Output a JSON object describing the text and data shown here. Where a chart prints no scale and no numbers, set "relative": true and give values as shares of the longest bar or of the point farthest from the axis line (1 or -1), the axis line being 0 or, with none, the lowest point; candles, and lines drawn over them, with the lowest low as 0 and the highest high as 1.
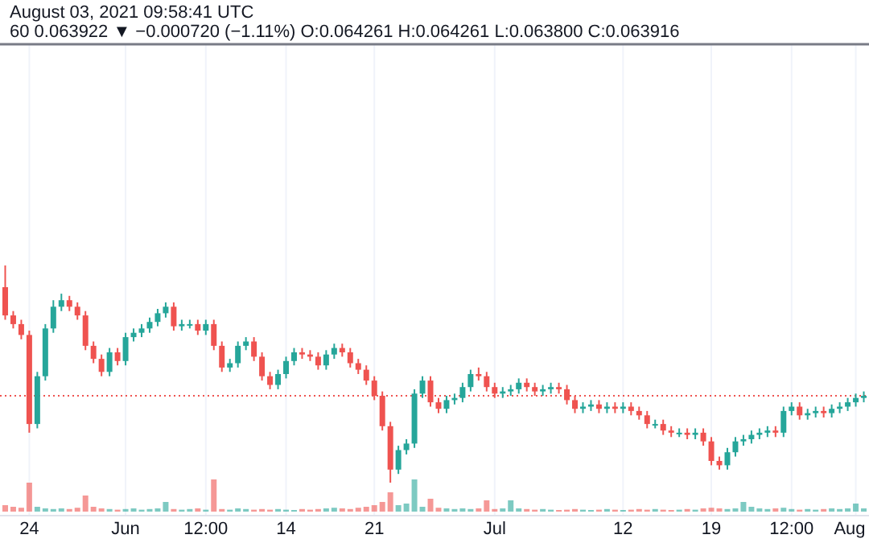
{
  "chart_data": [
    {
      "type": "candlestick",
      "title": "August 03, 2021 09:58:41 UTC",
      "subtitle": "60 0.063922 ▼ −0.000720 (−1.11%) O:0.064261 H:0.064261 L:0.063800 C:0.063916",
      "relative": true,
      "grid": "x",
      "colors": [
        "#ef5350",
        "#ef5350",
        "#ef5350",
        "#ef5350",
        "#26a69a",
        "#26a69a",
        "#26a69a",
        "#26a69a",
        "#ef5350",
        "#ef5350",
        "#ef5350",
        "#ef5350",
        "#ef5350",
        "#26a69a",
        "#ef5350",
        "#26a69a",
        "#26a69a",
        "#26a69a",
        "#26a69a",
        "#26a69a",
        "#26a69a",
        "#ef5350",
        "#26a69a",
        "#26a69a",
        "#ef5350",
        "#26a69a",
        "#ef5350",
        "#ef5350",
        "#26a69a",
        "#26a69a",
        "#26a69a",
        "#ef5350",
        "#ef5350",
        "#ef5350",
        "#26a69a",
        "#26a69a",
        "#26a69a",
        "#ef5350",
        "#ef5350",
        "#ef5350",
        "#26a69a",
        "#26a69a",
        "#ef5350",
        "#ef5350",
        "#ef5350",
        "#ef5350",
        "#ef5350",
        "#ef5350",
        "#ef5350",
        "#26a69a",
        "#26a69a",
        "#26a69a",
        "#26a69a",
        "#ef5350",
        "#ef5350",
        "#26a69a",
        "#26a69a",
        "#26a69a",
        "#26a69a",
        "#ef5350",
        "#ef5350",
        "#ef5350",
        "#26a69a",
        "#26a69a",
        "#26a69a",
        "#ef5350",
        "#ef5350",
        "#26a69a",
        "#26a69a",
        "#ef5350",
        "#ef5350",
        "#ef5350",
        "#26a69a",
        "#26a69a",
        "#ef5350",
        "#26a69a",
        "#ef5350",
        "#26a69a",
        "#ef5350",
        "#ef5350",
        "#ef5350",
        "#26a69a",
        "#ef5350",
        "#ef5350",
        "#26a69a",
        "#ef5350",
        "#26a69a",
        "#ef5350",
        "#ef5350",
        "#ef5350",
        "#26a69a",
        "#26a69a",
        "#26a69a",
        "#26a69a",
        "#26a69a",
        "#26a69a",
        "#ef5350",
        "#26a69a",
        "#26a69a",
        "#ef5350",
        "#26a69a",
        "#26a69a",
        "#ef5350",
        "#26a69a",
        "#26a69a",
        "#26a69a",
        "#26a69a",
        "#26a69a"
      ],
      "categories": [
        null,
        null,
        null,
        null,
        null,
        null,
        null,
        null,
        null,
        null,
        null,
        null,
        null,
        null,
        null,
        null,
        null,
        null,
        null,
        null,
        null,
        null,
        null,
        null,
        null,
        null,
        null,
        null,
        null,
        null,
        null,
        null,
        null,
        null,
        null,
        null,
        null,
        null,
        null,
        null,
        null,
        null,
        null,
        null,
        null,
        null,
        null,
        null,
        null,
        null,
        null,
        null,
        null,
        null,
        null,
        null,
        null,
        null,
        null,
        null,
        null,
        null,
        null,
        null,
        null,
        null,
        null,
        null,
        null,
        null,
        null,
        null,
        null,
        null,
        null,
        null,
        null,
        null,
        null,
        null,
        null,
        null,
        null,
        null,
        null,
        null,
        null,
        null,
        null,
        null,
        null,
        null,
        null,
        null,
        null,
        null,
        null,
        null,
        null,
        null,
        null,
        null,
        null,
        null,
        null,
        null,
        null,
        null
      ],
      "ohlc": [
        [
          0.9,
          1,
          0.75,
          0.77
        ],
        [
          0.77,
          0.79,
          0.71,
          0.73
        ],
        [
          0.73,
          0.75,
          0.66,
          0.68
        ],
        [
          0.68,
          0.7,
          0.23,
          0.27
        ],
        [
          0.27,
          0.51,
          0.25,
          0.49
        ],
        [
          0.49,
          0.73,
          0.47,
          0.71
        ],
        [
          0.71,
          0.84,
          0.69,
          0.81
        ],
        [
          0.81,
          0.87,
          0.79,
          0.84
        ],
        [
          0.84,
          0.86,
          0.79,
          0.81
        ],
        [
          0.81,
          0.83,
          0.75,
          0.77
        ],
        [
          0.77,
          0.79,
          0.61,
          0.63
        ],
        [
          0.63,
          0.65,
          0.55,
          0.57
        ],
        [
          0.57,
          0.59,
          0.49,
          0.51
        ],
        [
          0.51,
          0.62,
          0.49,
          0.6
        ],
        [
          0.6,
          0.62,
          0.54,
          0.56
        ],
        [
          0.56,
          0.69,
          0.54,
          0.67
        ],
        [
          0.67,
          0.71,
          0.65,
          0.69
        ],
        [
          0.69,
          0.73,
          0.67,
          0.71
        ],
        [
          0.71,
          0.76,
          0.69,
          0.74
        ],
        [
          0.74,
          0.8,
          0.72,
          0.78
        ],
        [
          0.78,
          0.83,
          0.76,
          0.81
        ],
        [
          0.81,
          0.83,
          0.7,
          0.72
        ],
        [
          0.72,
          0.75,
          0.7,
          0.73
        ],
        [
          0.73,
          0.75,
          0.71,
          0.73
        ],
        [
          0.73,
          0.75,
          0.68,
          0.7
        ],
        [
          0.7,
          0.75,
          0.68,
          0.73
        ],
        [
          0.73,
          0.75,
          0.61,
          0.63
        ],
        [
          0.63,
          0.65,
          0.51,
          0.53
        ],
        [
          0.53,
          0.57,
          0.51,
          0.55
        ],
        [
          0.55,
          0.65,
          0.53,
          0.63
        ],
        [
          0.63,
          0.67,
          0.61,
          0.65
        ],
        [
          0.65,
          0.67,
          0.56,
          0.58
        ],
        [
          0.58,
          0.6,
          0.47,
          0.49
        ],
        [
          0.49,
          0.51,
          0.43,
          0.45
        ],
        [
          0.45,
          0.52,
          0.43,
          0.5
        ],
        [
          0.5,
          0.58,
          0.48,
          0.56
        ],
        [
          0.56,
          0.62,
          0.54,
          0.6
        ],
        [
          0.6,
          0.62,
          0.57,
          0.59
        ],
        [
          0.59,
          0.61,
          0.56,
          0.58
        ],
        [
          0.58,
          0.6,
          0.52,
          0.54
        ],
        [
          0.54,
          0.61,
          0.52,
          0.59
        ],
        [
          0.59,
          0.64,
          0.57,
          0.62
        ],
        [
          0.62,
          0.64,
          0.58,
          0.6
        ],
        [
          0.6,
          0.62,
          0.53,
          0.55
        ],
        [
          0.55,
          0.57,
          0.5,
          0.52
        ],
        [
          0.52,
          0.54,
          0.45,
          0.47
        ],
        [
          0.47,
          0.49,
          0.38,
          0.4
        ],
        [
          0.4,
          0.42,
          0.24,
          0.26
        ],
        [
          0.26,
          0.28,
          0,
          0.06
        ],
        [
          0.06,
          0.17,
          0.04,
          0.15
        ],
        [
          0.15,
          0.2,
          0.13,
          0.18
        ],
        [
          0.18,
          0.43,
          0.16,
          0.41
        ],
        [
          0.41,
          0.49,
          0.39,
          0.47
        ],
        [
          0.47,
          0.49,
          0.35,
          0.37
        ],
        [
          0.37,
          0.39,
          0.32,
          0.34
        ],
        [
          0.34,
          0.4,
          0.32,
          0.38
        ],
        [
          0.38,
          0.41,
          0.36,
          0.39
        ],
        [
          0.39,
          0.46,
          0.37,
          0.44
        ],
        [
          0.44,
          0.52,
          0.42,
          0.5
        ],
        [
          0.5,
          0.53,
          0.47,
          0.49
        ],
        [
          0.49,
          0.51,
          0.42,
          0.44
        ],
        [
          0.44,
          0.46,
          0.39,
          0.41
        ],
        [
          0.41,
          0.44,
          0.39,
          0.42
        ],
        [
          0.42,
          0.45,
          0.4,
          0.43
        ],
        [
          0.43,
          0.48,
          0.41,
          0.46
        ],
        [
          0.46,
          0.48,
          0.42,
          0.44
        ],
        [
          0.44,
          0.46,
          0.4,
          0.42
        ],
        [
          0.42,
          0.45,
          0.4,
          0.43
        ],
        [
          0.43,
          0.46,
          0.41,
          0.44
        ],
        [
          0.44,
          0.46,
          0.41,
          0.43
        ],
        [
          0.43,
          0.45,
          0.36,
          0.38
        ],
        [
          0.38,
          0.4,
          0.32,
          0.34
        ],
        [
          0.34,
          0.37,
          0.32,
          0.35
        ],
        [
          0.35,
          0.38,
          0.33,
          0.36
        ],
        [
          0.36,
          0.38,
          0.32,
          0.34
        ],
        [
          0.34,
          0.37,
          0.32,
          0.35
        ],
        [
          0.35,
          0.37,
          0.32,
          0.34
        ],
        [
          0.34,
          0.37,
          0.32,
          0.35
        ],
        [
          0.35,
          0.37,
          0.31,
          0.33
        ],
        [
          0.33,
          0.35,
          0.29,
          0.31
        ],
        [
          0.31,
          0.33,
          0.25,
          0.27
        ],
        [
          0.27,
          0.29,
          0.25,
          0.27
        ],
        [
          0.27,
          0.29,
          0.22,
          0.24
        ],
        [
          0.24,
          0.26,
          0.21,
          0.23
        ],
        [
          0.23,
          0.25,
          0.21,
          0.23
        ],
        [
          0.23,
          0.25,
          0.2,
          0.22
        ],
        [
          0.22,
          0.25,
          0.2,
          0.23
        ],
        [
          0.23,
          0.25,
          0.17,
          0.19
        ],
        [
          0.19,
          0.21,
          0.08,
          0.1
        ],
        [
          0.1,
          0.12,
          0.06,
          0.08
        ],
        [
          0.08,
          0.16,
          0.06,
          0.14
        ],
        [
          0.14,
          0.21,
          0.12,
          0.19
        ],
        [
          0.19,
          0.22,
          0.17,
          0.2
        ],
        [
          0.2,
          0.24,
          0.18,
          0.22
        ],
        [
          0.22,
          0.25,
          0.2,
          0.23
        ],
        [
          0.23,
          0.26,
          0.21,
          0.24
        ],
        [
          0.24,
          0.26,
          0.21,
          0.23
        ],
        [
          0.23,
          0.35,
          0.21,
          0.33
        ],
        [
          0.33,
          0.37,
          0.31,
          0.35
        ],
        [
          0.35,
          0.37,
          0.29,
          0.31
        ],
        [
          0.31,
          0.34,
          0.29,
          0.32
        ],
        [
          0.32,
          0.35,
          0.3,
          0.33
        ],
        [
          0.33,
          0.35,
          0.3,
          0.32
        ],
        [
          0.32,
          0.36,
          0.3,
          0.34
        ],
        [
          0.34,
          0.37,
          0.32,
          0.35
        ],
        [
          0.35,
          0.39,
          0.33,
          0.37
        ],
        [
          0.37,
          0.41,
          0.35,
          0.39
        ],
        [
          0.39,
          0.42,
          0.37,
          0.4
        ]
      ],
      "ref_lines": [
        {
          "axis": "y",
          "value": 0.4,
          "color": "#ef5350",
          "line_style": "dotted"
        }
      ]
    },
    {
      "type": "bar",
      "relative": true,
      "grid": "x",
      "colors": [
        "#ef5350",
        "#ef5350",
        "#ef5350",
        "#ef5350",
        "#26a69a",
        "#26a69a",
        "#26a69a",
        "#26a69a",
        "#ef5350",
        "#ef5350",
        "#ef5350",
        "#ef5350",
        "#ef5350",
        "#26a69a",
        "#ef5350",
        "#26a69a",
        "#26a69a",
        "#26a69a",
        "#26a69a",
        "#26a69a",
        "#26a69a",
        "#ef5350",
        "#26a69a",
        "#26a69a",
        "#ef5350",
        "#26a69a",
        "#ef5350",
        "#ef5350",
        "#26a69a",
        "#26a69a",
        "#26a69a",
        "#ef5350",
        "#ef5350",
        "#ef5350",
        "#26a69a",
        "#26a69a",
        "#26a69a",
        "#ef5350",
        "#ef5350",
        "#ef5350",
        "#26a69a",
        "#26a69a",
        "#ef5350",
        "#ef5350",
        "#ef5350",
        "#ef5350",
        "#ef5350",
        "#ef5350",
        "#ef5350",
        "#26a69a",
        "#26a69a",
        "#26a69a",
        "#26a69a",
        "#ef5350",
        "#ef5350",
        "#26a69a",
        "#26a69a",
        "#26a69a",
        "#26a69a",
        "#ef5350",
        "#ef5350",
        "#ef5350",
        "#26a69a",
        "#26a69a",
        "#26a69a",
        "#ef5350",
        "#ef5350",
        "#26a69a",
        "#26a69a",
        "#ef5350",
        "#ef5350",
        "#ef5350",
        "#26a69a",
        "#26a69a",
        "#ef5350",
        "#26a69a",
        "#ef5350",
        "#26a69a",
        "#ef5350",
        "#ef5350",
        "#ef5350",
        "#26a69a",
        "#ef5350",
        "#ef5350",
        "#26a69a",
        "#ef5350",
        "#26a69a",
        "#ef5350",
        "#ef5350",
        "#ef5350",
        "#26a69a",
        "#26a69a",
        "#26a69a",
        "#26a69a",
        "#26a69a",
        "#26a69a",
        "#ef5350",
        "#26a69a",
        "#26a69a",
        "#ef5350",
        "#26a69a",
        "#26a69a",
        "#ef5350",
        "#26a69a",
        "#26a69a",
        "#26a69a",
        "#26a69a",
        "#26a69a"
      ],
      "categories": [
        null,
        null,
        null,
        "24",
        null,
        null,
        null,
        null,
        null,
        null,
        null,
        null,
        null,
        null,
        null,
        "Jun",
        null,
        null,
        null,
        null,
        null,
        null,
        null,
        null,
        null,
        "12:00",
        null,
        null,
        null,
        null,
        null,
        null,
        null,
        null,
        null,
        "14",
        null,
        null,
        null,
        null,
        null,
        null,
        null,
        null,
        null,
        null,
        "21",
        null,
        null,
        null,
        null,
        null,
        null,
        null,
        null,
        null,
        null,
        null,
        null,
        null,
        null,
        "Jul",
        null,
        null,
        null,
        null,
        null,
        null,
        null,
        null,
        null,
        null,
        null,
        null,
        null,
        null,
        null,
        "12",
        null,
        null,
        null,
        null,
        null,
        null,
        null,
        null,
        null,
        null,
        "19",
        null,
        null,
        null,
        null,
        null,
        null,
        null,
        null,
        null,
        "12:00",
        null,
        null,
        null,
        null,
        null,
        null,
        null,
        "Aug",
        null
      ],
      "values": [
        0.2,
        0.15,
        0.12,
        0.9,
        0.15,
        0.1,
        0.08,
        0.1,
        0.08,
        0.12,
        0.5,
        0.15,
        0.1,
        0.08,
        0.06,
        0.08,
        0.1,
        0.06,
        0.08,
        0.1,
        0.3,
        0.08,
        0.06,
        0.08,
        0.1,
        0.06,
        1,
        0.08,
        0.06,
        0.1,
        0.08,
        0.06,
        0.08,
        0.06,
        0.08,
        0.06,
        0.05,
        0.08,
        0.06,
        0.08,
        0.1,
        0.12,
        0.1,
        0.08,
        0.12,
        0.15,
        0.2,
        0.3,
        0.6,
        0.2,
        0.25,
        1,
        0.15,
        0.4,
        0.12,
        0.1,
        0.08,
        0.1,
        0.08,
        0.1,
        0.35,
        0.08,
        0.1,
        0.35,
        0.1,
        0.08,
        0.06,
        0.08,
        0.06,
        0.05,
        0.06,
        0.08,
        0.06,
        0.05,
        0.06,
        0.08,
        0.06,
        0.05,
        0.06,
        0.08,
        0.06,
        0.08,
        0.06,
        0.05,
        0.06,
        0.08,
        0.06,
        0.1,
        0.12,
        0.1,
        0.08,
        0.1,
        0.3,
        0.15,
        0.1,
        0.08,
        0.1,
        0.12,
        0.08,
        0.06,
        0.08,
        0.06,
        0.08,
        0.1,
        0.08,
        0.1,
        0.25,
        0.1
      ]
    }
  ]
}
